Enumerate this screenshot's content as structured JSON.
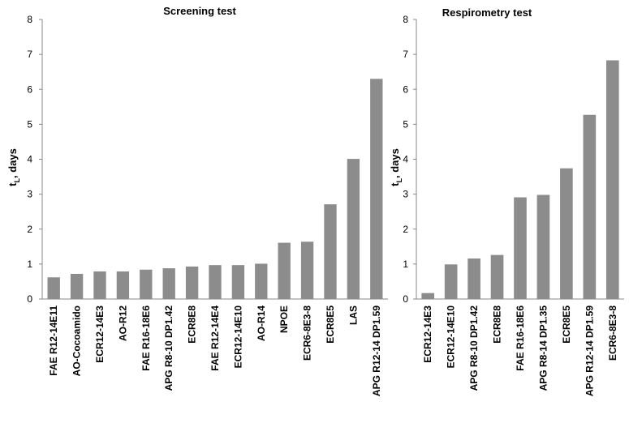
{
  "chart_data": [
    {
      "type": "bar",
      "title": "Screening test",
      "ylabel_main": "t",
      "ylabel_sub": "L",
      "ylabel_rest": ", days",
      "ylim": [
        0,
        8
      ],
      "yticks": [
        "0",
        "1",
        "2",
        "3",
        "4",
        "5",
        "6",
        "7",
        "8"
      ],
      "categories": [
        "FAE R12-14E11",
        "AO-Cocoamido",
        "ECR12-14E3",
        "AO-R12",
        "FAE R16-18E6",
        "APG R8-10 DP1.42",
        "ECR8E8",
        "FAE R12-14E4",
        "ECR12-14E10",
        "AO-R14",
        "NPOE",
        "ECR6-8E3-8",
        "ECR8E5",
        "LAS",
        "APG R12-14 DP1.59"
      ],
      "values": [
        0.62,
        0.72,
        0.79,
        0.79,
        0.84,
        0.88,
        0.93,
        0.97,
        0.97,
        1.01,
        1.61,
        1.64,
        2.71,
        4.01,
        6.3
      ]
    },
    {
      "type": "bar",
      "title": "Respirometry test",
      "ylabel_main": "t",
      "ylabel_sub": "L",
      "ylabel_rest": ", days",
      "ylim": [
        0,
        8
      ],
      "yticks": [
        "0",
        "1",
        "2",
        "3",
        "4",
        "5",
        "6",
        "7",
        "8"
      ],
      "categories": [
        "ECR12-14E3",
        "ECR12-14E10",
        "APG R8-10 DP1.42",
        "ECR8E8",
        "FAE R16-18E6",
        "APG R8-14 DP1.35",
        "ECR8E5",
        "APG R12-14 DP1.59",
        "ECR6-8E3-8"
      ],
      "values": [
        0.17,
        0.99,
        1.16,
        1.26,
        2.91,
        2.98,
        3.74,
        5.27,
        6.83
      ]
    }
  ]
}
